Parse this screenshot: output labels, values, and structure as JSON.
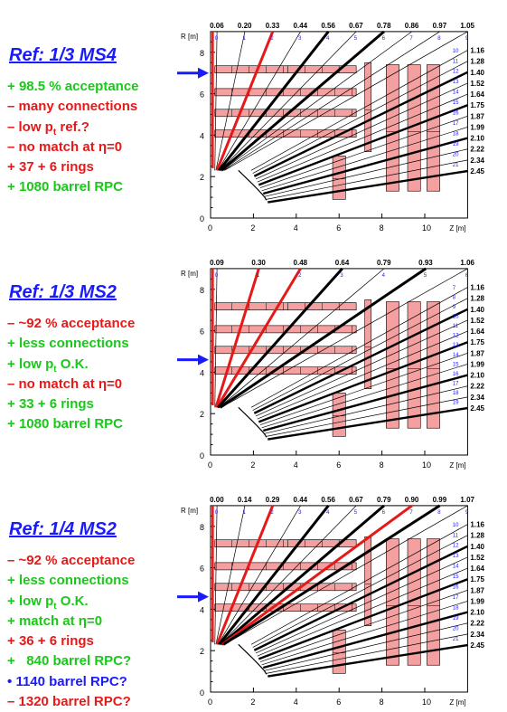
{
  "axes": {
    "r_label": "R [m]",
    "z_label": "Z [m]",
    "r_ticks": [
      "0",
      "2",
      "4",
      "6",
      "8"
    ],
    "z_ticks": [
      "0",
      "2",
      "4",
      "6",
      "8",
      "10"
    ]
  },
  "colors": {
    "title": "#1a1aff",
    "plus": "#19c819",
    "minus": "#e61919",
    "chamber": "#f5a0a0",
    "red_line": "#e61919"
  },
  "eta_right": [
    "1.16",
    "1.28",
    "1.40",
    "1.52",
    "1.64",
    "1.75",
    "1.87",
    "1.99",
    "2.10",
    "2.22",
    "2.34",
    "2.45"
  ],
  "panels": [
    {
      "title": "Ref: 1/3 MS4",
      "arrow_r": 7.0,
      "lines": [
        {
          "sign": "+",
          "text": "98.5 % acceptance",
          "color": "plus"
        },
        {
          "sign": "–",
          "text": "many connections",
          "color": "minus"
        },
        {
          "sign": "–",
          "text": "low p",
          "sub": "t",
          "after": " ref.?",
          "color": "minus"
        },
        {
          "sign": "–",
          "text": "no match at η=0",
          "color": "minus"
        },
        {
          "sign": "+",
          "text": "37 + 6 rings",
          "color": "minus"
        },
        {
          "sign": "+",
          "text": "1080 barrel RPC",
          "color": "plus"
        }
      ],
      "eta_top": [
        "0.06",
        "0.20",
        "0.33",
        "0.44",
        "0.56",
        "0.67",
        "0.78",
        "0.86",
        "0.97",
        "1.05"
      ],
      "ring_numbers": [
        "0",
        "1",
        "2",
        "3",
        "4",
        "5",
        "6",
        "7",
        "8",
        "9",
        "10",
        "11",
        "12",
        "13",
        "14",
        "15",
        "16",
        "17",
        "18",
        "19",
        "20",
        "21"
      ]
    },
    {
      "title": "Ref: 1/3 MS2",
      "arrow_r": 4.6,
      "lines": [
        {
          "sign": "–",
          "text": "~92 % acceptance",
          "color": "minus"
        },
        {
          "sign": "+",
          "text": "less connections",
          "color": "plus"
        },
        {
          "sign": "+",
          "text": "low p",
          "sub": "t",
          "after": " O.K.",
          "color": "plus"
        },
        {
          "sign": "–",
          "text": "no match at η=0",
          "color": "minus"
        },
        {
          "sign": "+",
          "text": "33 + 6 rings",
          "color": "plus"
        },
        {
          "sign": "+",
          "text": "1080 barrel RPC",
          "color": "plus"
        }
      ],
      "eta_top": [
        "0.09",
        "0.30",
        "0.48",
        "0.64",
        "0.79",
        "0.93",
        "1.06"
      ],
      "ring_numbers": [
        "0",
        "1",
        "2",
        "3",
        "4",
        "5",
        "6",
        "7",
        "8",
        "9",
        "10",
        "11",
        "12",
        "13",
        "14",
        "15",
        "16",
        "17",
        "18",
        "19"
      ]
    },
    {
      "title": "Ref: 1/4 MS2",
      "arrow_r": 4.6,
      "lines": [
        {
          "sign": "–",
          "text": "~92 % acceptance",
          "color": "minus"
        },
        {
          "sign": "+",
          "text": "less connections",
          "color": "plus"
        },
        {
          "sign": "+",
          "text": "low p",
          "sub": "t",
          "after": " O.K.",
          "color": "plus"
        },
        {
          "sign": "+",
          "text": "match at η=0",
          "color": "plus"
        },
        {
          "sign": "+",
          "text": "36 + 6 rings",
          "color": "minus"
        },
        {
          "sign": "+",
          "text": "  840 barrel RPC?",
          "color": "plus"
        },
        {
          "sign": "•",
          "text": "1140 barrel RPC?",
          "color": "blue"
        },
        {
          "sign": "–",
          "text": "1320 barrel RPC?",
          "color": "minus"
        }
      ],
      "eta_top": [
        "0.00",
        "0.14",
        "0.29",
        "0.44",
        "0.56",
        "0.67",
        "0.79",
        "0.90",
        "0.99",
        "1.07"
      ],
      "ring_numbers": [
        "0",
        "1",
        "2",
        "3",
        "4",
        "5",
        "6",
        "7",
        "8",
        "9",
        "10",
        "11",
        "12",
        "13",
        "14",
        "15",
        "16",
        "17",
        "18",
        "19",
        "20",
        "21"
      ]
    }
  ]
}
